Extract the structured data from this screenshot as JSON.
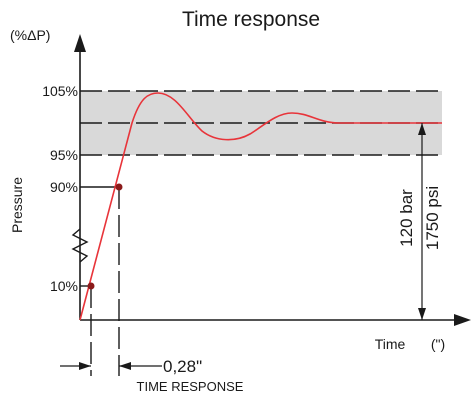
{
  "title": "Time response",
  "y_unit": "(%ΔP)",
  "y_axis_label": "Pressure",
  "x_axis_label": "Time",
  "x_unit": "(\")",
  "ticks": {
    "t105": "105%",
    "t95": "95%",
    "t90": "90%",
    "t10": "10%"
  },
  "response_time_value": "0,28\"",
  "response_time_label": "TIME RESPONSE",
  "pressure_bar": "120 bar",
  "pressure_psi": "1750 psi",
  "colors": {
    "curve": "#e8343a",
    "band": "#d9d9d9",
    "axis": "#1a1a1a",
    "marker": "#8b1a1a"
  }
}
